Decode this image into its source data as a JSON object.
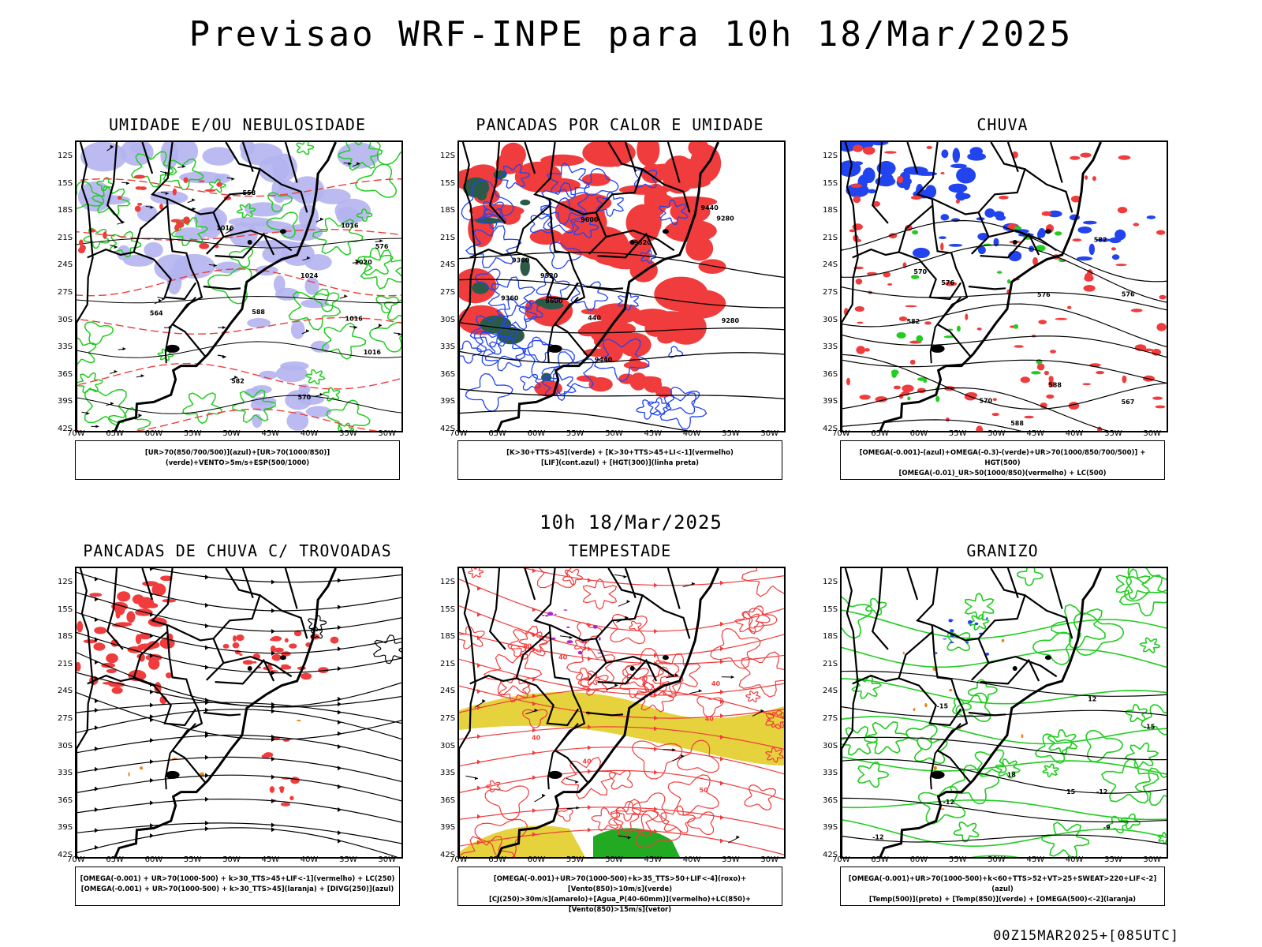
{
  "header": {
    "title": "Previsao WRF-INPE  para 10h 18/Mar/2025"
  },
  "mid_label": "10h 18/Mar/2025",
  "footer": "00Z15MAR2025+[085UTC]",
  "axes": {
    "lat_labels": [
      "12S",
      "15S",
      "18S",
      "21S",
      "24S",
      "27S",
      "30S",
      "33S",
      "36S",
      "39S",
      "42S"
    ],
    "lon_labels": [
      "70W",
      "65W",
      "60W",
      "55W",
      "50W",
      "45W",
      "40W",
      "35W",
      "30W"
    ]
  },
  "colors": {
    "red": "#f03c3c",
    "green": "#22cc22",
    "blue": "#2244ee",
    "lavender": "#b4b4f0",
    "yellow": "#e6d23c",
    "darkgreen": "#2c5a48",
    "purple": "#aa22cc",
    "orange": "#e8821e"
  },
  "panels": [
    {
      "title": "UMIDADE E/OU NEBULOSIDADE",
      "legend": [
        "[UR>70(850/700/500)](azul)+[UR>70(1000/850)](verde)+VENTO>5m/s+ESP(500/1000)"
      ],
      "contour_labels": [
        "1016",
        "1016",
        "1016",
        "1020",
        "1016",
        "570",
        "576",
        "564",
        "588",
        "582",
        "558",
        "1024"
      ]
    },
    {
      "title": "PANCADAS POR CALOR E UMIDADE",
      "legend": [
        "[K>30+TTS>45](verde) + [K>30+TTS>45+LI<-1](vermelho)",
        "[LIF](cont.azul) + [HGT(300)](linha preta)"
      ],
      "contour_labels": [
        "9600",
        "9520",
        "9440",
        "9360",
        "9280",
        "9600",
        "9520",
        "9440",
        "9360",
        "9280",
        "440"
      ]
    },
    {
      "title": "CHUVA",
      "legend": [
        "[OMEGA(-0.001)-(azul)+OMEGA(-0.3)-(verde)+UR>70(1000/850/700/500)] + HGT(500)",
        "[OMEGA(-0.01)_UR>50(1000/850)(vermelho) + LC(500)"
      ],
      "contour_labels": [
        "588",
        "582",
        "576",
        "570",
        "567",
        "570",
        "576",
        "582",
        "588",
        "576"
      ]
    },
    {
      "title": "PANCADAS DE CHUVA C/ TROVOADAS",
      "legend": [
        "[OMEGA(-0.001) + UR>70(1000-500) + k>30_TTS>45+LIF<-1](vermelho) + LC(250)",
        "[OMEGA(-0.001) + UR>70(1000-500) + k>30_TTS>45](laranja) + [DIVG(250)](azul)"
      ],
      "contour_labels": []
    },
    {
      "title": "TEMPESTADE",
      "legend": [
        "[OMEGA(-0.001)+UR>70(1000-500)+k>35_TTS>50+LIF<-4](roxo)+[Vento(850)>10m/s](verde)",
        "[CJ(250)>30m/s](amarelo)+[Agua_P(40-60mm)](vermelho)+LC(850)+[Vento(850)>15m/s](vetor)"
      ],
      "contour_labels": [
        "40",
        "40",
        "50",
        "40",
        "40",
        "40",
        "50"
      ]
    },
    {
      "title": "GRANIZO",
      "legend": [
        "[OMEGA(-0.001)+UR>70(1000-500)+k<60+TTS>52+VT>25+SWEAT>220+LIF<-2](azul)",
        "[Temp(500)](preto) + [Temp(850)](verde) + [OMEGA(500)<-2](laranja)"
      ],
      "contour_labels": [
        "-9",
        "-12",
        "-15",
        "-12",
        "-15",
        "15",
        "18",
        "12",
        "-12"
      ]
    }
  ]
}
